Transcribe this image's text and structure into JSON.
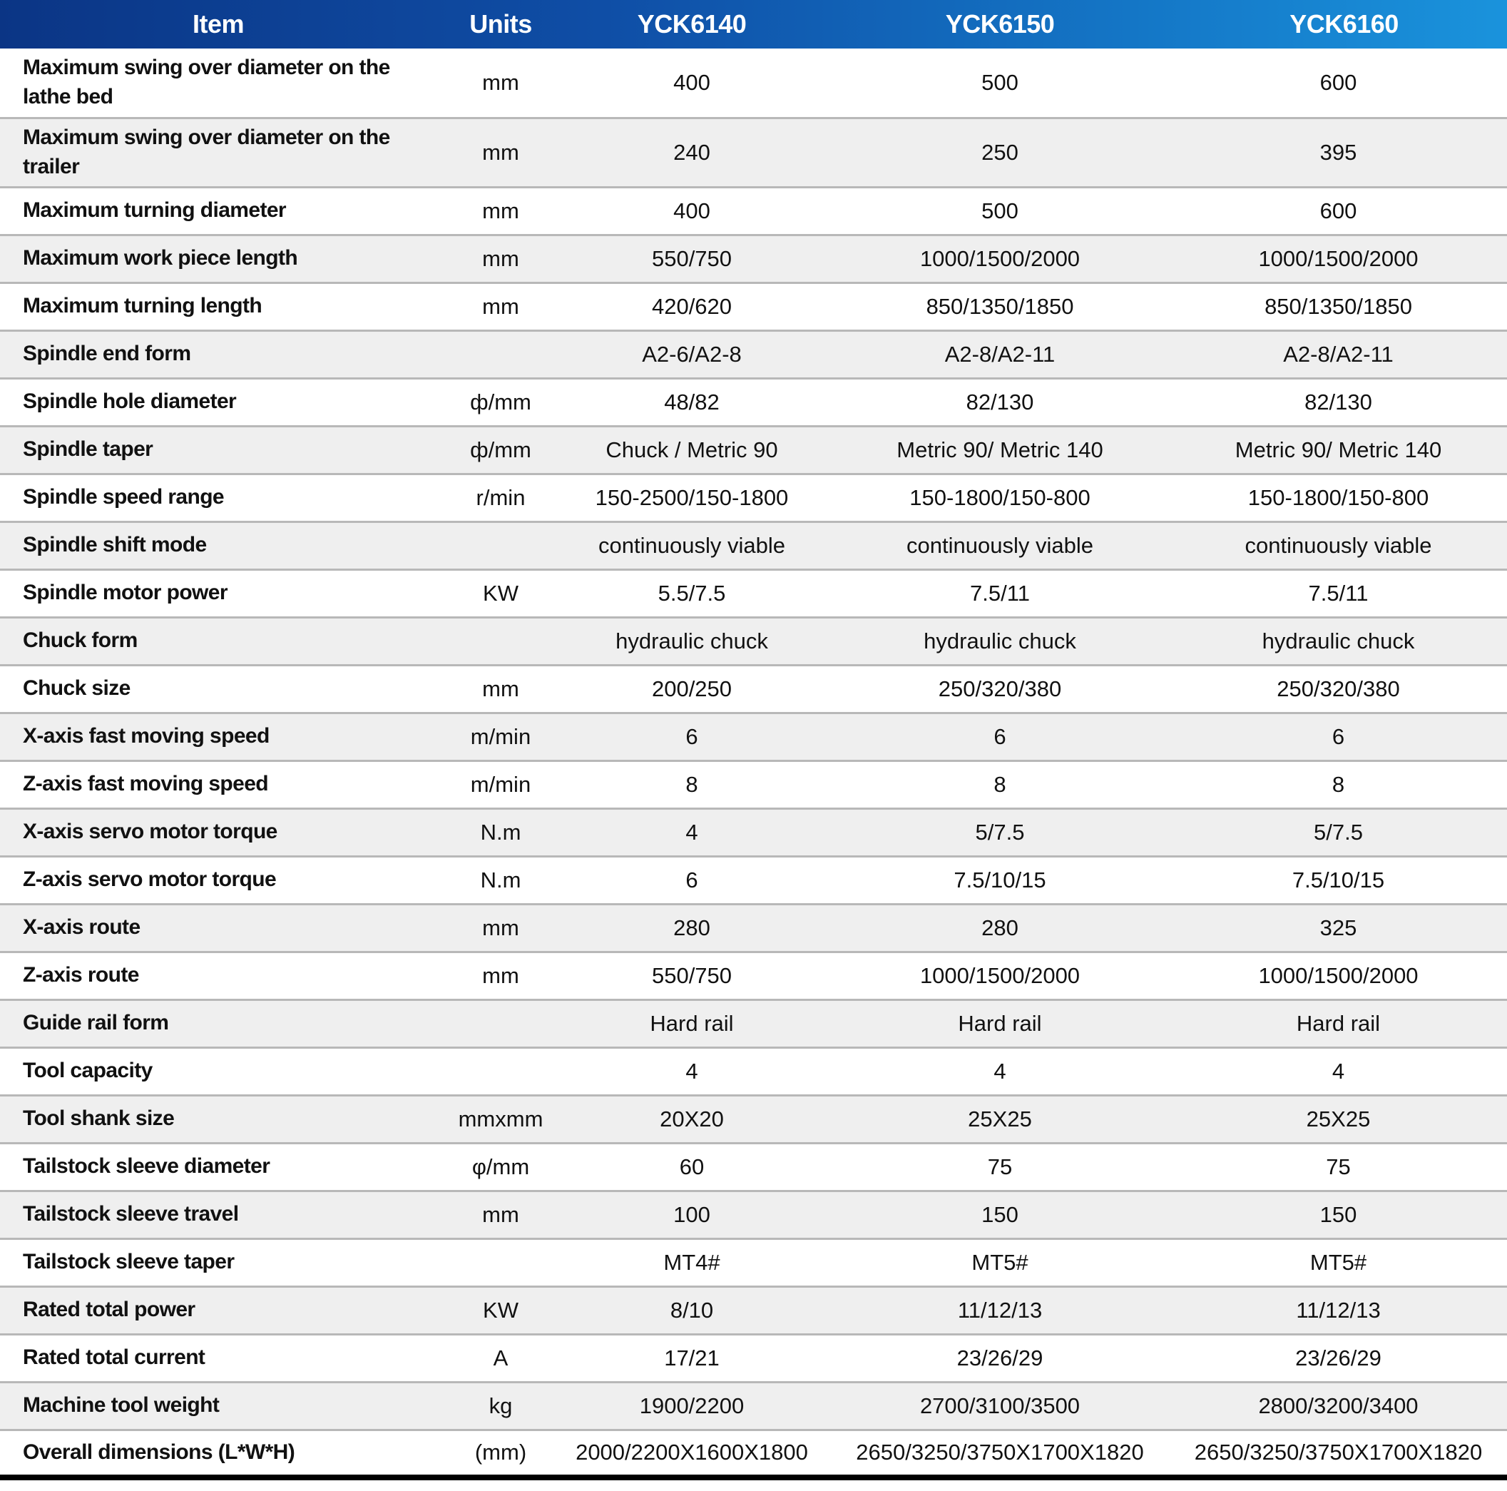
{
  "header": {
    "item": "Item",
    "units": "Units",
    "models": [
      "YCK6140",
      "YCK6150",
      "YCK6160"
    ]
  },
  "rows": [
    {
      "item": "Maximum swing over diameter on the lathe bed",
      "units": "mm",
      "values": [
        "400",
        "500",
        "600"
      ]
    },
    {
      "item": "Maximum swing over diameter on the trailer",
      "units": "mm",
      "values": [
        "240",
        "250",
        "395"
      ]
    },
    {
      "item": "Maximum turning diameter",
      "units": "mm",
      "values": [
        "400",
        "500",
        "600"
      ]
    },
    {
      "item": "Maximum work piece length",
      "units": "mm",
      "values": [
        "550/750",
        "1000/1500/2000",
        "1000/1500/2000"
      ]
    },
    {
      "item": "Maximum turning length",
      "units": "mm",
      "values": [
        "420/620",
        "850/1350/1850",
        "850/1350/1850"
      ]
    },
    {
      "item": "Spindle end form",
      "units": "",
      "values": [
        "A2-6/A2-8",
        "A2-8/A2-11",
        "A2-8/A2-11"
      ]
    },
    {
      "item": "Spindle hole diameter",
      "units": "ф/mm",
      "values": [
        "48/82",
        "82/130",
        "82/130"
      ]
    },
    {
      "item": "Spindle taper",
      "units": "ф/mm",
      "values": [
        "Chuck / Metric 90",
        "Metric 90/ Metric 140",
        "Metric 90/ Metric 140"
      ]
    },
    {
      "item": "Spindle speed range",
      "units": "r/min",
      "values": [
        "150-2500/150-1800",
        "150-1800/150-800",
        "150-1800/150-800"
      ]
    },
    {
      "item": "Spindle shift mode",
      "units": "",
      "values": [
        "continuously viable",
        "continuously viable",
        "continuously viable"
      ]
    },
    {
      "item": "Spindle motor power",
      "units": "KW",
      "values": [
        "5.5/7.5",
        "7.5/11",
        "7.5/11"
      ]
    },
    {
      "item": "Chuck form",
      "units": "",
      "values": [
        "hydraulic chuck",
        "hydraulic chuck",
        "hydraulic chuck"
      ]
    },
    {
      "item": "Chuck size",
      "units": "mm",
      "values": [
        "200/250",
        "250/320/380",
        "250/320/380"
      ]
    },
    {
      "item": "X-axis fast moving speed",
      "units": "m/min",
      "values": [
        "6",
        "6",
        "6"
      ]
    },
    {
      "item": "Z-axis fast moving speed",
      "units": "m/min",
      "values": [
        "8",
        "8",
        "8"
      ]
    },
    {
      "item": "X-axis servo motor torque",
      "units": "N.m",
      "values": [
        "4",
        "5/7.5",
        "5/7.5"
      ]
    },
    {
      "item": "Z-axis servo motor torque",
      "units": "N.m",
      "values": [
        "6",
        "7.5/10/15",
        "7.5/10/15"
      ]
    },
    {
      "item": "X-axis route",
      "units": "mm",
      "values": [
        "280",
        "280",
        "325"
      ]
    },
    {
      "item": "Z-axis route",
      "units": "mm",
      "values": [
        "550/750",
        "1000/1500/2000",
        "1000/1500/2000"
      ]
    },
    {
      "item": "Guide rail form",
      "units": "",
      "values": [
        "Hard rail",
        "Hard rail",
        "Hard rail"
      ]
    },
    {
      "item": "Tool capacity",
      "units": "",
      "values": [
        "4",
        "4",
        "4"
      ]
    },
    {
      "item": "Tool shank size",
      "units": "mmxmm",
      "values": [
        "20X20",
        "25X25",
        "25X25"
      ]
    },
    {
      "item": "Tailstock sleeve diameter",
      "units": "φ/mm",
      "values": [
        "60",
        "75",
        "75"
      ]
    },
    {
      "item": "Tailstock sleeve travel",
      "units": "mm",
      "values": [
        "100",
        "150",
        "150"
      ]
    },
    {
      "item": "Tailstock sleeve taper",
      "units": "",
      "values": [
        "MT4#",
        "MT5#",
        "MT5#"
      ]
    },
    {
      "item": "Rated total power",
      "units": "KW",
      "values": [
        "8/10",
        "11/12/13",
        "11/12/13"
      ]
    },
    {
      "item": "Rated total current",
      "units": "A",
      "values": [
        "17/21",
        "23/26/29",
        "23/26/29"
      ]
    },
    {
      "item": "Machine tool weight",
      "units": "kg",
      "values": [
        "1900/2200",
        "2700/3100/3500",
        "2800/3200/3400"
      ]
    },
    {
      "item": "Overall dimensions (L*W*H)",
      "units": "(mm)",
      "values": [
        "2000/2200X1600X1800",
        "2650/3250/3750X1700X1820",
        "2650/3250/3750X1700X1820"
      ]
    }
  ]
}
